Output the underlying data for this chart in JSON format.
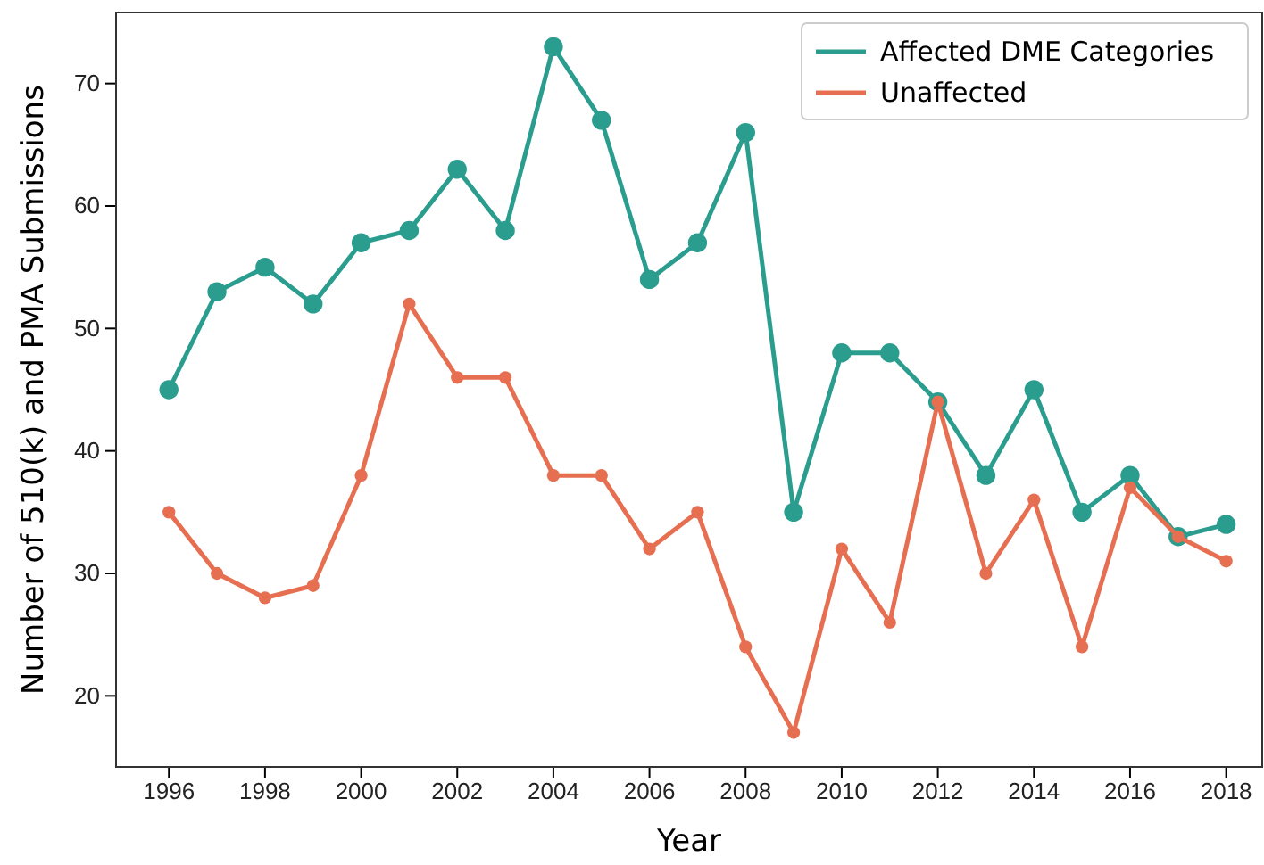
{
  "chart_data": {
    "type": "line",
    "xlabel": "Year",
    "ylabel": "Number of 510(k) and PMA Submissions",
    "x": [
      1996,
      1997,
      1998,
      1999,
      2000,
      2001,
      2002,
      2003,
      2004,
      2005,
      2006,
      2007,
      2008,
      2009,
      2010,
      2011,
      2012,
      2013,
      2014,
      2015,
      2016,
      2017,
      2018
    ],
    "series": [
      {
        "name": "Affected DME Categories",
        "color": "#2a9d8f",
        "values": [
          45,
          53,
          55,
          52,
          57,
          58,
          63,
          58,
          73,
          67,
          54,
          57,
          66,
          35,
          48,
          48,
          44,
          38,
          45,
          35,
          38,
          33,
          34
        ]
      },
      {
        "name": "Unaffected",
        "color": "#e76f51",
        "values": [
          35,
          30,
          28,
          29,
          38,
          52,
          46,
          46,
          38,
          38,
          32,
          35,
          24,
          17,
          32,
          26,
          44,
          30,
          36,
          24,
          37,
          33,
          31
        ]
      }
    ],
    "xlim": [
      1994.9,
      2018.75
    ],
    "ylim": [
      14.2,
      75.8
    ],
    "xticks": [
      1996,
      1998,
      2000,
      2002,
      2004,
      2006,
      2008,
      2010,
      2012,
      2014,
      2016,
      2018
    ],
    "yticks": [
      20,
      30,
      40,
      50,
      60,
      70
    ],
    "marker": "circle",
    "line_style": "solid",
    "legend": "top right",
    "grid": false
  }
}
